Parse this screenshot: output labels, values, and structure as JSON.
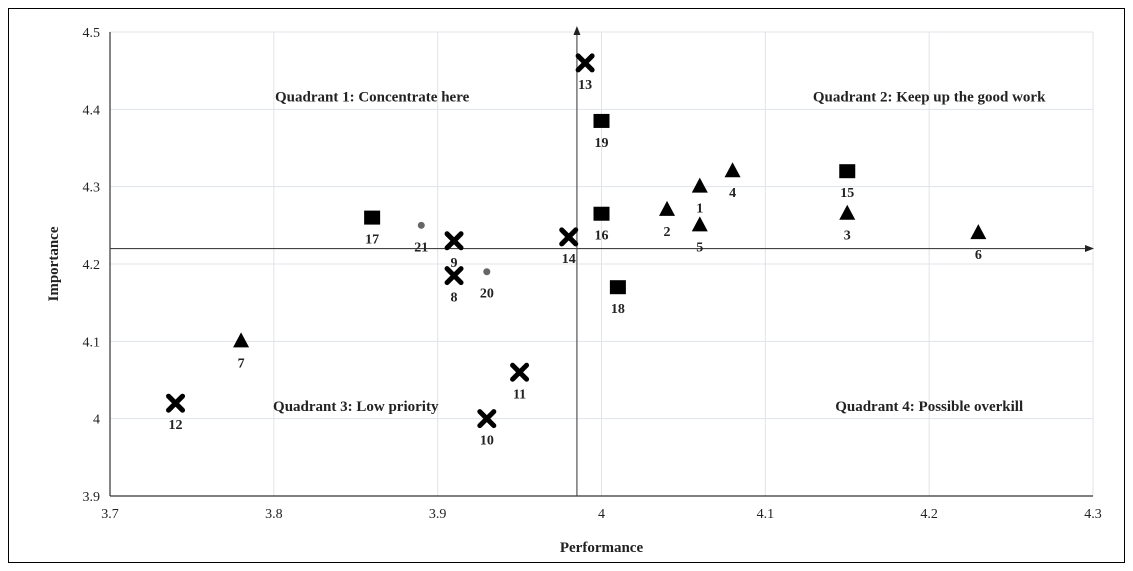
{
  "chart_data": {
    "type": "scatter",
    "title": "",
    "xlabel": "Performance",
    "ylabel": "Importance",
    "xlim": [
      3.7,
      4.3
    ],
    "ylim": [
      3.9,
      4.5
    ],
    "x_ticks": [
      "3.7",
      "3.8",
      "3.9",
      "4",
      "4.1",
      "4.2",
      "4.3"
    ],
    "y_ticks": [
      "3.9",
      "4",
      "4.1",
      "4.2",
      "4.3",
      "4.4",
      "4.5"
    ],
    "grid": true,
    "crosshair": {
      "x": 3.985,
      "y": 4.22
    },
    "quadrants": [
      {
        "label": "Quadrant 1: Concentrate here",
        "x": 3.86,
        "y": 4.41
      },
      {
        "label": "Quadrant 2: Keep up the good work",
        "x": 4.2,
        "y": 4.41
      },
      {
        "label": "Quadrant 3: Low priority",
        "x": 3.85,
        "y": 4.01
      },
      {
        "label": "Quadrant 4: Possible overkill",
        "x": 4.2,
        "y": 4.01
      }
    ],
    "points": [
      {
        "label": "1",
        "x": 4.06,
        "y": 4.3,
        "marker": "triangle"
      },
      {
        "label": "2",
        "x": 4.04,
        "y": 4.27,
        "marker": "triangle"
      },
      {
        "label": "3",
        "x": 4.15,
        "y": 4.265,
        "marker": "triangle"
      },
      {
        "label": "4",
        "x": 4.08,
        "y": 4.32,
        "marker": "triangle"
      },
      {
        "label": "5",
        "x": 4.06,
        "y": 4.25,
        "marker": "triangle"
      },
      {
        "label": "6",
        "x": 4.23,
        "y": 4.24,
        "marker": "triangle"
      },
      {
        "label": "7",
        "x": 3.78,
        "y": 4.1,
        "marker": "triangle"
      },
      {
        "label": "8",
        "x": 3.91,
        "y": 4.185,
        "marker": "cross"
      },
      {
        "label": "9",
        "x": 3.91,
        "y": 4.23,
        "marker": "cross"
      },
      {
        "label": "10",
        "x": 3.93,
        "y": 4.0,
        "marker": "cross"
      },
      {
        "label": "11",
        "x": 3.95,
        "y": 4.06,
        "marker": "cross"
      },
      {
        "label": "12",
        "x": 3.74,
        "y": 4.02,
        "marker": "cross"
      },
      {
        "label": "13",
        "x": 3.99,
        "y": 4.46,
        "marker": "cross"
      },
      {
        "label": "14",
        "x": 3.98,
        "y": 4.235,
        "marker": "cross"
      },
      {
        "label": "15",
        "x": 4.15,
        "y": 4.32,
        "marker": "square"
      },
      {
        "label": "16",
        "x": 4.0,
        "y": 4.265,
        "marker": "square"
      },
      {
        "label": "17",
        "x": 3.86,
        "y": 4.26,
        "marker": "square"
      },
      {
        "label": "18",
        "x": 4.01,
        "y": 4.17,
        "marker": "square"
      },
      {
        "label": "19",
        "x": 4.0,
        "y": 4.385,
        "marker": "square"
      },
      {
        "label": "20",
        "x": 3.93,
        "y": 4.19,
        "marker": "dot"
      },
      {
        "label": "21",
        "x": 3.89,
        "y": 4.25,
        "marker": "dot"
      }
    ]
  }
}
